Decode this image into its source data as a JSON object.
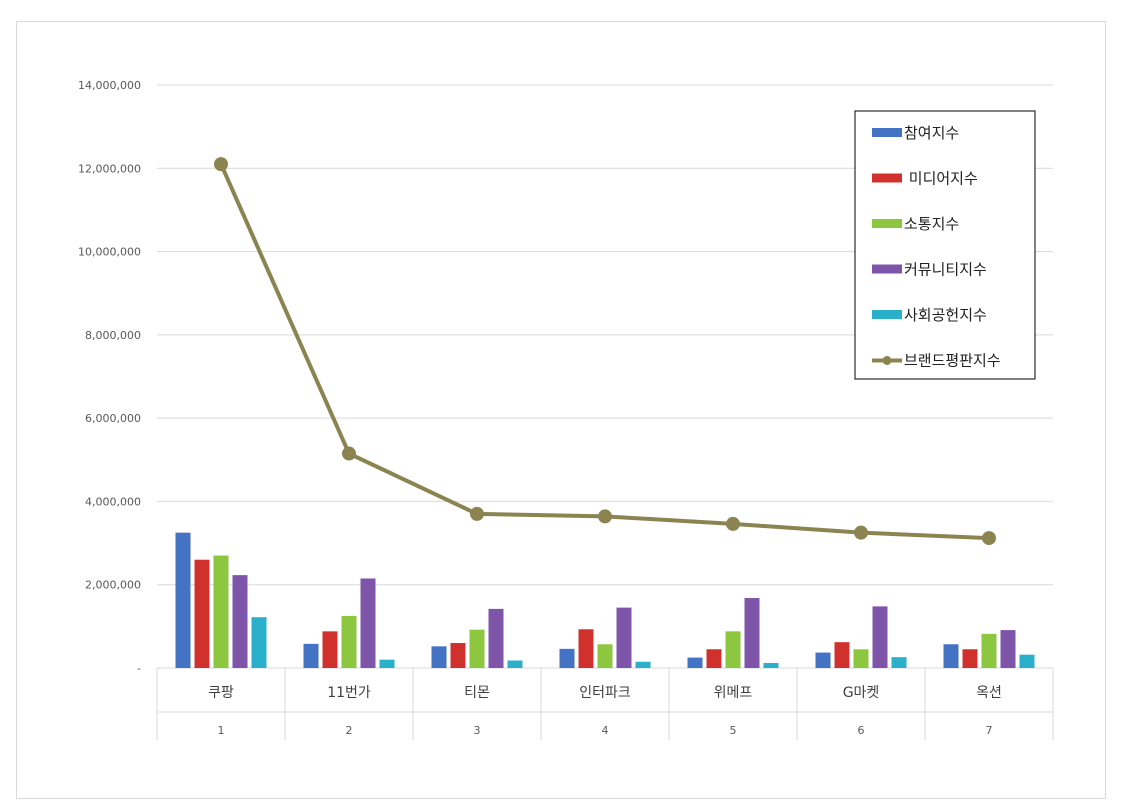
{
  "chart_data": {
    "type": "bar",
    "title": "",
    "xlabel": "",
    "ylabel": "",
    "ylim": [
      0,
      14000000
    ],
    "yticks": [
      0,
      2000000,
      4000000,
      6000000,
      8000000,
      10000000,
      12000000,
      14000000
    ],
    "ytick_labels": [
      "-",
      "2,000,000",
      "4,000,000",
      "6,000,000",
      "8,000,000",
      "10,000,000",
      "12,000,000",
      "14,000,000"
    ],
    "categories": [
      "쿠팡",
      "11번가",
      "티몬",
      "인터파크",
      "위메프",
      "G마켓",
      "옥션"
    ],
    "ranks": [
      "1",
      "2",
      "3",
      "4",
      "5",
      "6",
      "7"
    ],
    "grid": true,
    "legend_position": "top-right",
    "series": [
      {
        "name": "참여지수",
        "kind": "bar",
        "color": "#4472C4",
        "values": [
          3250000,
          580000,
          520000,
          460000,
          250000,
          370000,
          570000
        ]
      },
      {
        "name": " 미디어지수",
        "kind": "bar",
        "color": "#D0312D",
        "values": [
          2600000,
          880000,
          600000,
          930000,
          450000,
          620000,
          450000
        ]
      },
      {
        "name": "소통지수",
        "kind": "bar",
        "color": "#8DC63F",
        "values": [
          2700000,
          1250000,
          920000,
          570000,
          880000,
          450000,
          820000
        ]
      },
      {
        "name": "커뮤니티지수",
        "kind": "bar",
        "color": "#7E55A8",
        "values": [
          2230000,
          2150000,
          1420000,
          1450000,
          1680000,
          1480000,
          910000
        ]
      },
      {
        "name": "사회공헌지수",
        "kind": "bar",
        "color": "#2BB0CB",
        "values": [
          1220000,
          200000,
          180000,
          150000,
          120000,
          260000,
          320000
        ]
      },
      {
        "name": "브랜드평판지수",
        "kind": "line",
        "color": "#8B8451",
        "values": [
          12100000,
          5150000,
          3700000,
          3640000,
          3460000,
          3250000,
          3120000
        ]
      }
    ]
  }
}
